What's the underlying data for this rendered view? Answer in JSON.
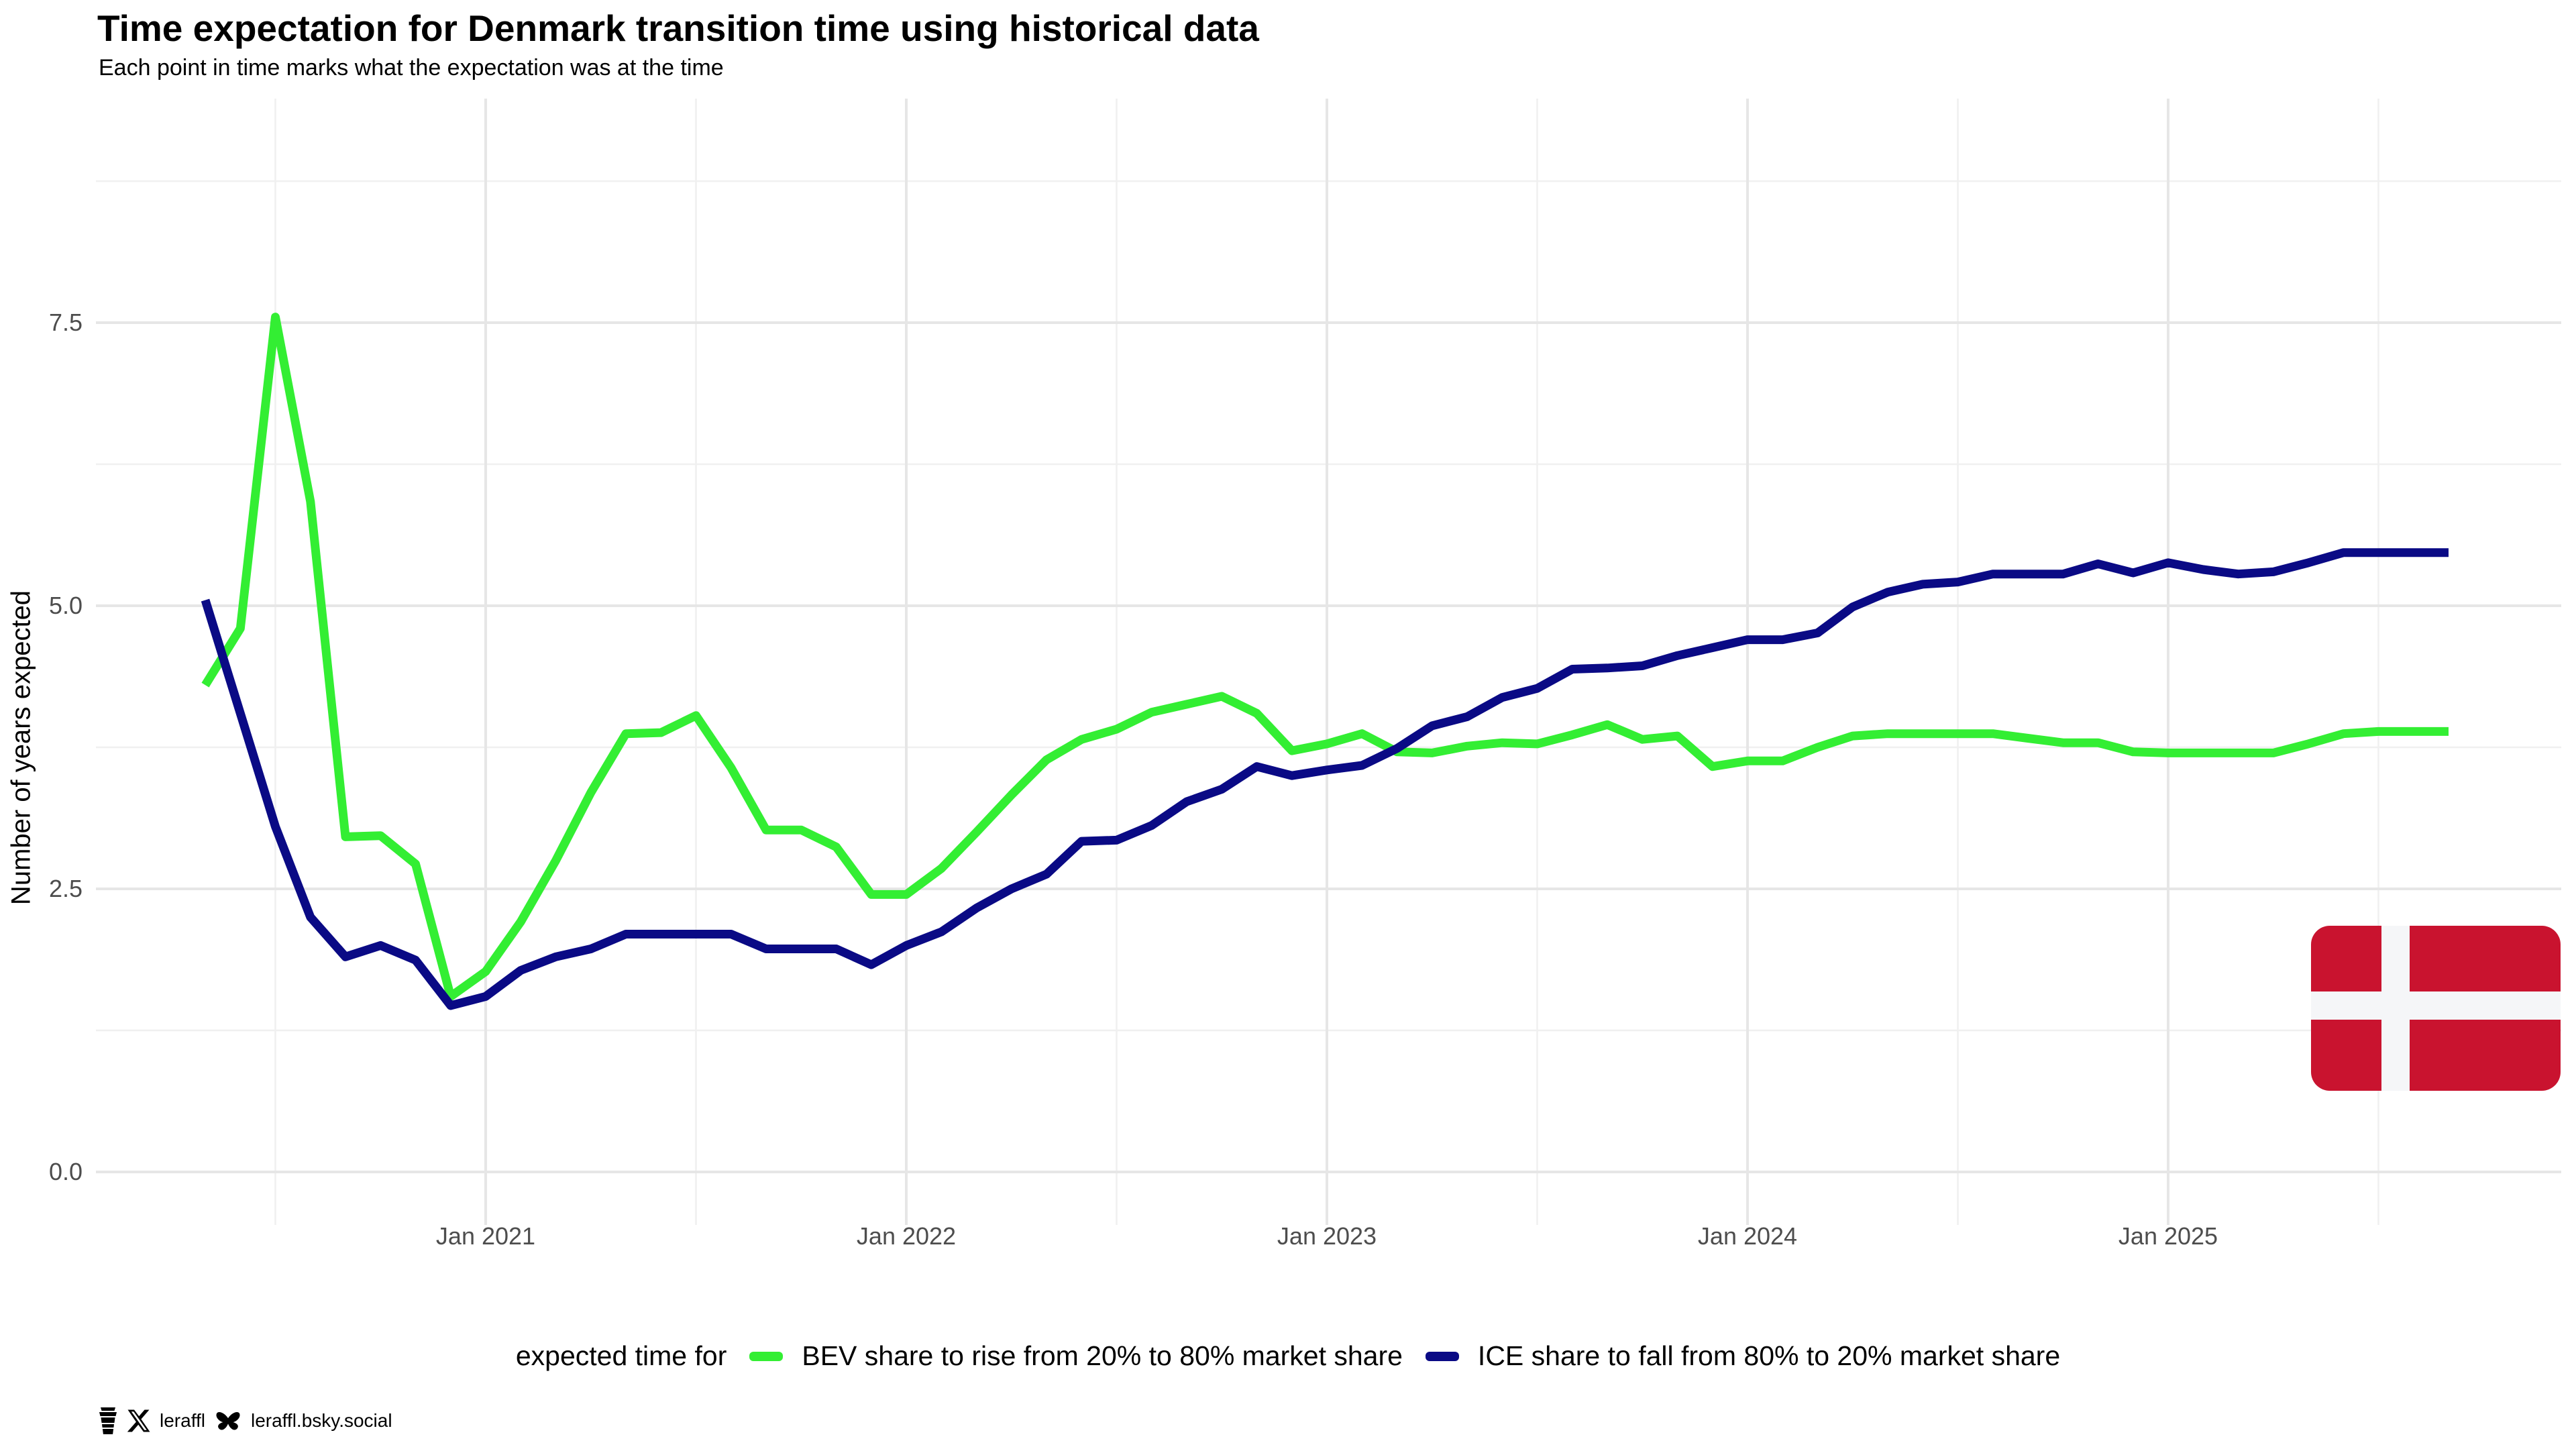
{
  "header": {
    "title": "Time expectation for Denmark transition time using historical data",
    "subtitle": "Each point in time marks what the expectation was at the time"
  },
  "chart_data": {
    "type": "line",
    "title": "Time expectation for Denmark transition time using historical data",
    "subtitle": "Each point in time marks what the expectation was at the time",
    "xlabel": "",
    "ylabel": "Number of years expected",
    "ylim": [
      -0.5,
      9.5
    ],
    "grid": "on",
    "legend_position": "bottom",
    "x": [
      "2020-05",
      "2020-06",
      "2020-07",
      "2020-08",
      "2020-09",
      "2020-10",
      "2020-11",
      "2020-12",
      "2021-01",
      "2021-02",
      "2021-03",
      "2021-04",
      "2021-05",
      "2021-06",
      "2021-07",
      "2021-08",
      "2021-09",
      "2021-10",
      "2021-11",
      "2021-12",
      "2022-01",
      "2022-02",
      "2022-03",
      "2022-04",
      "2022-05",
      "2022-06",
      "2022-07",
      "2022-08",
      "2022-09",
      "2022-10",
      "2022-11",
      "2022-12",
      "2023-01",
      "2023-02",
      "2023-03",
      "2023-04",
      "2023-05",
      "2023-06",
      "2023-07",
      "2023-08",
      "2023-09",
      "2023-10",
      "2023-11",
      "2023-12",
      "2024-01",
      "2024-02",
      "2024-03",
      "2024-04",
      "2024-05",
      "2024-06",
      "2024-07",
      "2024-08",
      "2024-09",
      "2024-10",
      "2024-11",
      "2024-12",
      "2025-01",
      "2025-02",
      "2025-03",
      "2025-04",
      "2025-05",
      "2025-06",
      "2025-07",
      "2025-08",
      "2025-09"
    ],
    "series": [
      {
        "name": "BEV share to rise from 20% to 80% market share",
        "color": "#33EE33",
        "values": [
          4.3,
          4.8,
          7.55,
          5.92,
          2.96,
          2.97,
          2.72,
          1.55,
          1.77,
          2.21,
          2.75,
          3.35,
          3.87,
          3.88,
          4.03,
          3.57,
          3.02,
          3.02,
          2.87,
          2.45,
          2.45,
          2.68,
          3.0,
          3.33,
          3.64,
          3.82,
          3.91,
          4.06,
          4.13,
          4.2,
          4.05,
          3.72,
          3.78,
          3.87,
          3.71,
          3.7,
          3.76,
          3.79,
          3.78,
          3.86,
          3.95,
          3.82,
          3.85,
          3.58,
          3.63,
          3.63,
          3.75,
          3.85,
          3.87,
          3.87,
          3.87,
          3.87,
          3.83,
          3.79,
          3.79,
          3.71,
          3.7,
          3.7,
          3.7,
          3.7,
          3.78,
          3.87,
          3.89,
          3.89,
          3.89
        ]
      },
      {
        "name": "ICE share to fall from 80% to 20% market share",
        "color": "#0A0A85",
        "values": [
          5.05,
          4.05,
          3.05,
          2.25,
          1.9,
          2.0,
          1.87,
          1.47,
          1.55,
          1.78,
          1.9,
          1.97,
          2.1,
          2.1,
          2.1,
          2.1,
          1.97,
          1.97,
          1.97,
          1.83,
          2.0,
          2.12,
          2.33,
          2.5,
          2.63,
          2.92,
          2.93,
          3.06,
          3.27,
          3.38,
          3.58,
          3.5,
          3.55,
          3.59,
          3.74,
          3.94,
          4.02,
          4.19,
          4.27,
          4.44,
          4.45,
          4.47,
          4.56,
          4.63,
          4.7,
          4.7,
          4.76,
          4.99,
          5.12,
          5.19,
          5.21,
          5.28,
          5.28,
          5.28,
          5.37,
          5.29,
          5.38,
          5.32,
          5.28,
          5.3,
          5.38,
          5.47,
          5.47,
          5.47,
          5.47
        ]
      }
    ],
    "yticks": [
      {
        "label": "0.0",
        "value": 0.0
      },
      {
        "label": "2.5",
        "value": 2.5
      },
      {
        "label": "5.0",
        "value": 5.0
      },
      {
        "label": "7.5",
        "value": 7.5
      }
    ],
    "xticks": [
      {
        "label": "Jan 2021",
        "month": "2021-01"
      },
      {
        "label": "Jan 2022",
        "month": "2022-01"
      },
      {
        "label": "Jan 2023",
        "month": "2023-01"
      },
      {
        "label": "Jan 2024",
        "month": "2024-01"
      },
      {
        "label": "Jan 2025",
        "month": "2025-01"
      }
    ]
  },
  "axis": {
    "y_title": "Number of years expected"
  },
  "legend": {
    "title": "expected time for",
    "items": [
      {
        "label": "BEV share to rise from 20% to 80% market share",
        "color": "#33EE33"
      },
      {
        "label": "ICE share to fall from 80% to 20% market share",
        "color": "#0A0A85"
      }
    ]
  },
  "flag": {
    "country": "Denmark",
    "red": "#C9132F",
    "white": "#F5F6F8"
  },
  "footer": {
    "icons": [
      "coffee-cup-icon",
      "x-logo-icon",
      "butterfly-icon"
    ],
    "x_handle": "leraffl",
    "bsky_handle": "leraffl.bsky.social"
  },
  "colors": {
    "background": "#FFFFFF",
    "grid_major": "#E6E6E6",
    "grid_minor": "#F0F0F0",
    "tick_text": "#4D4D4D"
  }
}
